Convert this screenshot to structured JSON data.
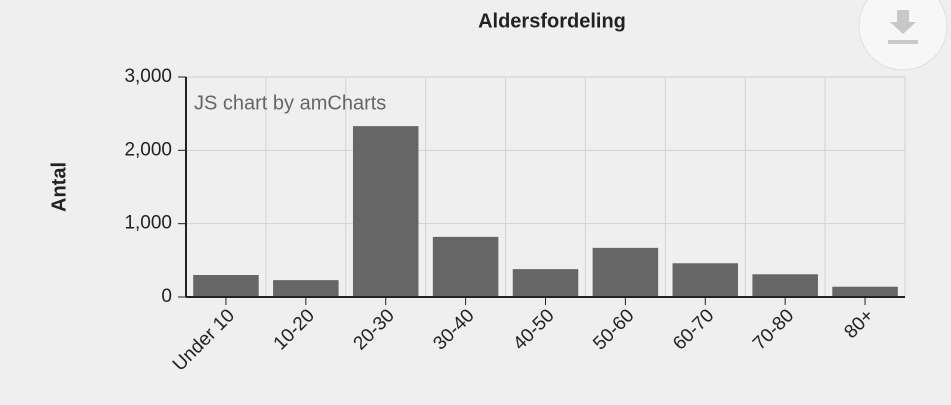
{
  "chart_data": {
    "type": "bar",
    "title": "Aldersfordeling",
    "y_label": "Antal",
    "watermark": "JS chart by amCharts",
    "categories": [
      "Under 10",
      "10-20",
      "20-30",
      "30-40",
      "40-50",
      "50-60",
      "60-70",
      "70-80",
      "80+"
    ],
    "values": [
      300,
      230,
      2330,
      820,
      380,
      670,
      460,
      310,
      140
    ],
    "color": "#666666",
    "ylim": [
      0,
      3000
    ],
    "yticks": [
      0,
      {
        "value": 1000,
        "label": "1,000"
      },
      {
        "value": 2000,
        "label": "2,000"
      },
      {
        "value": 3000,
        "label": "3,000"
      }
    ],
    "grid": true
  }
}
